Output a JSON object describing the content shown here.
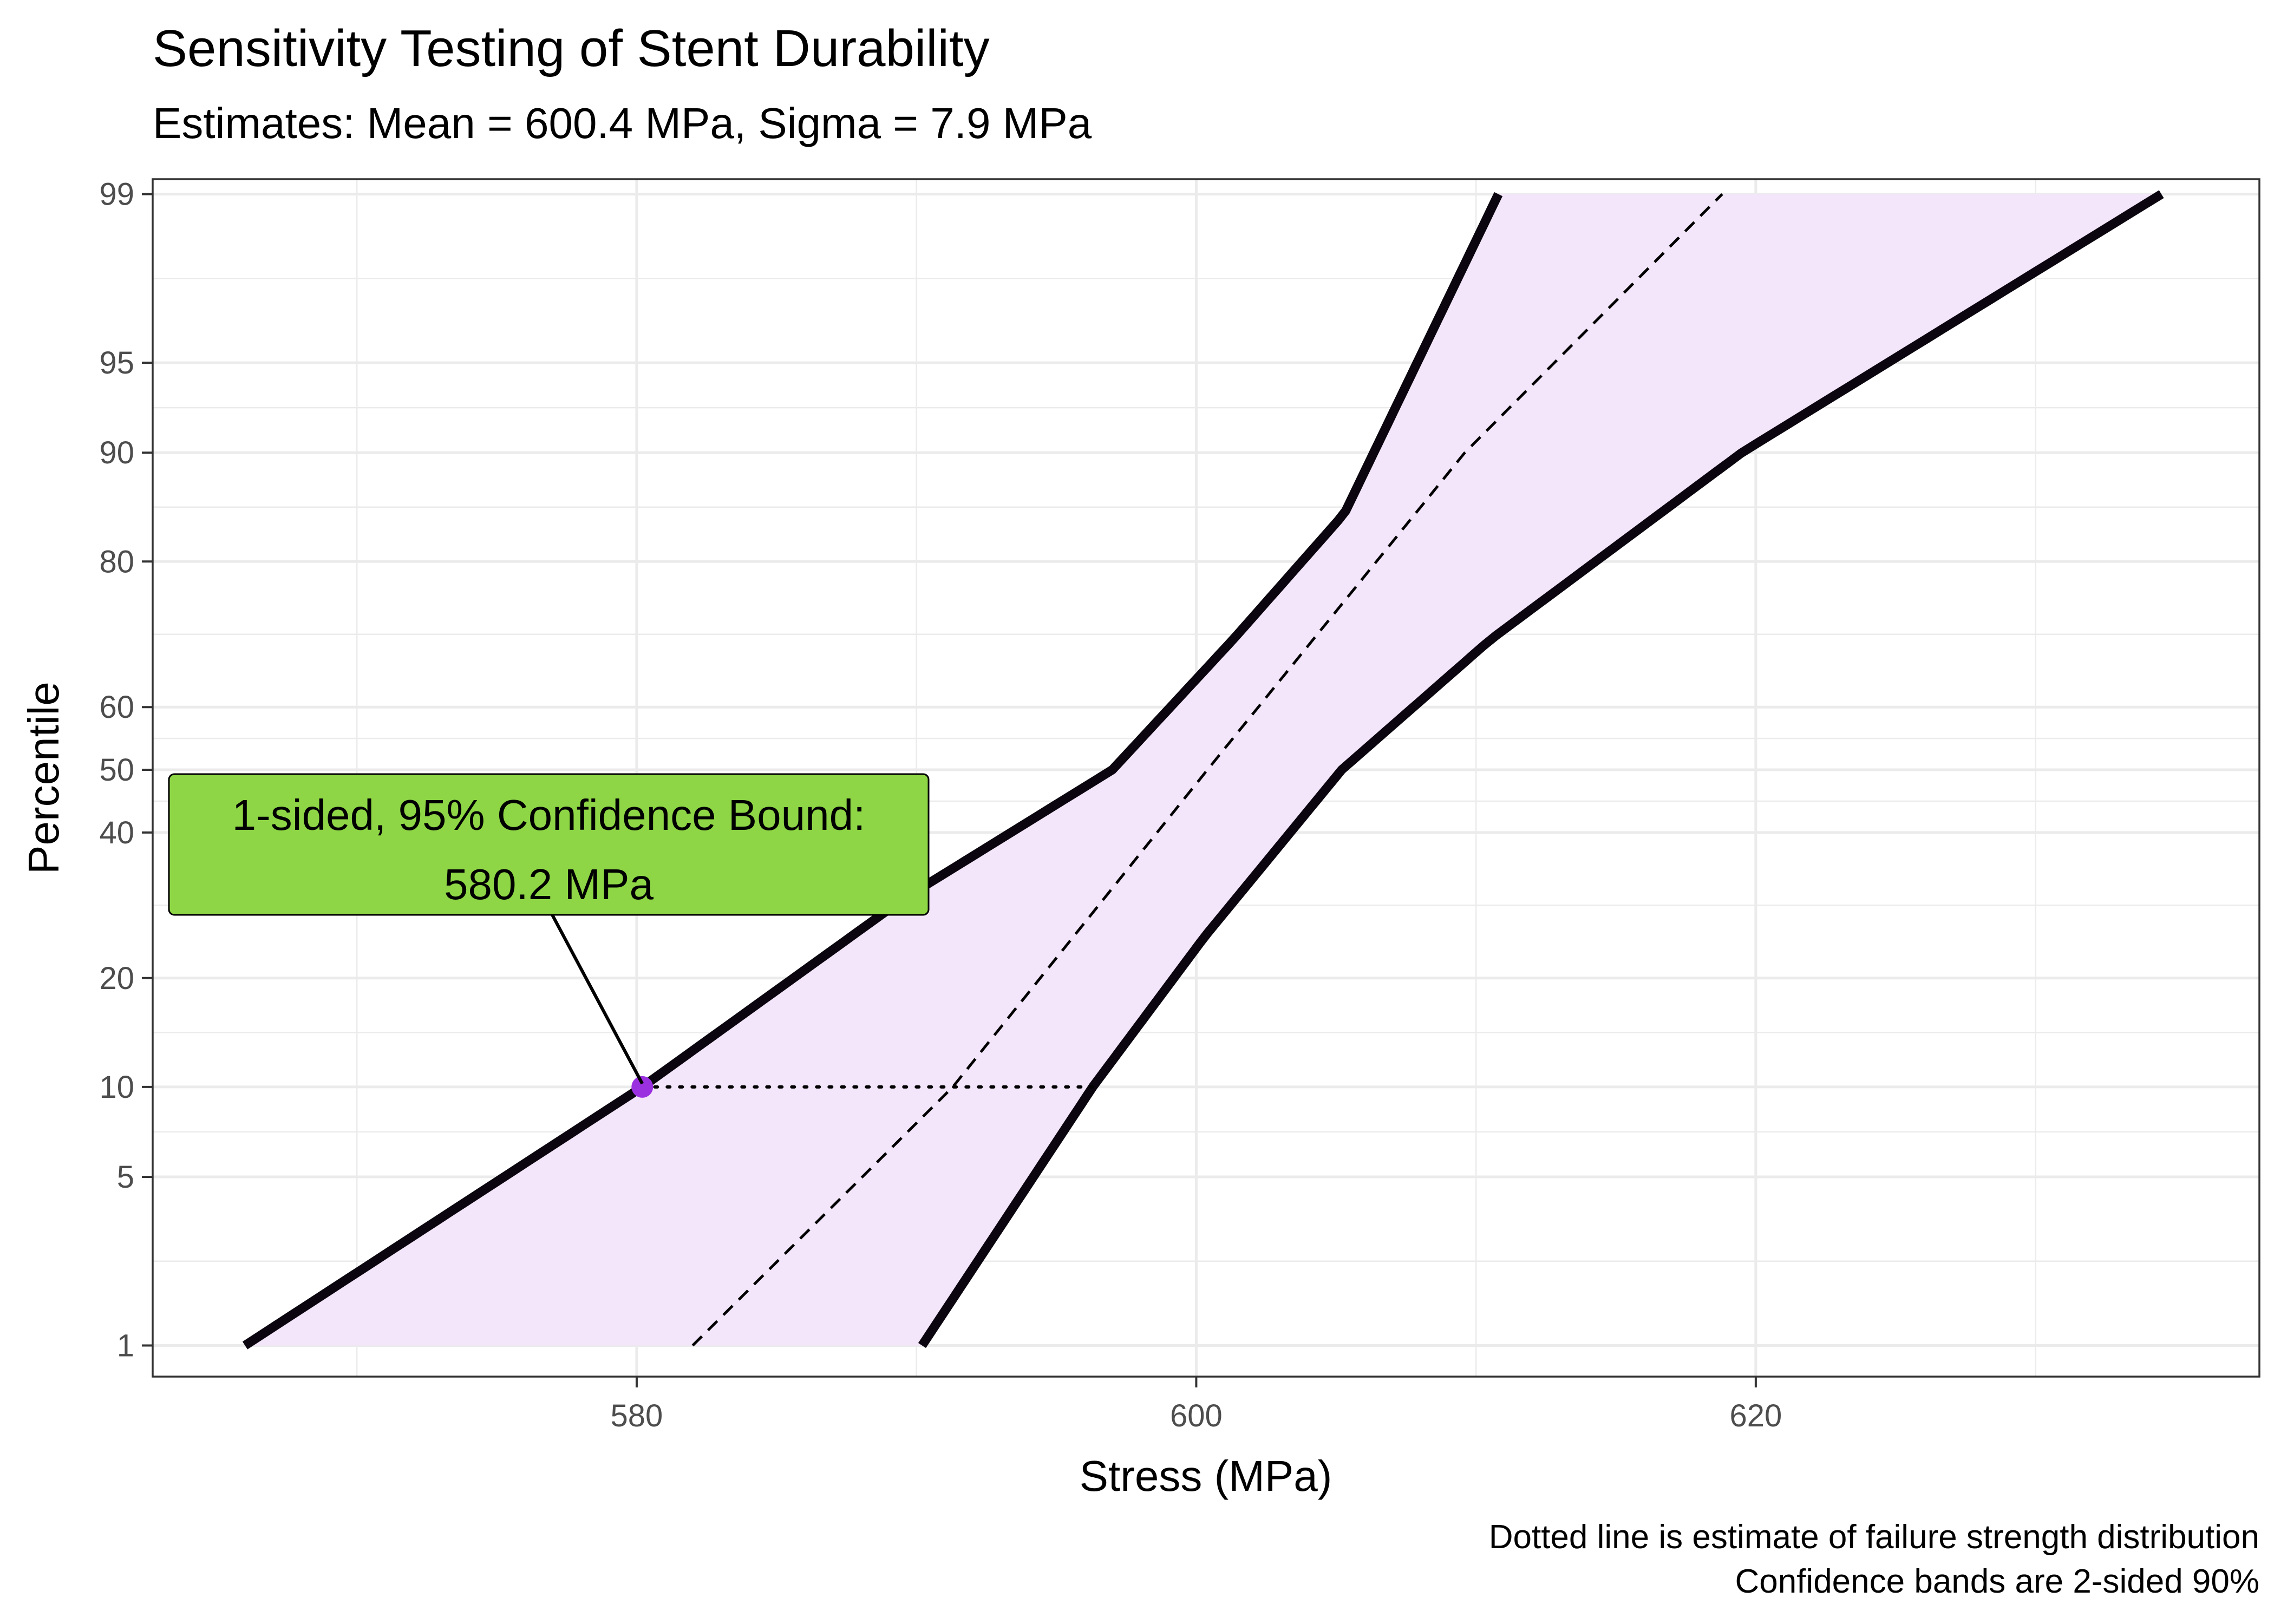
{
  "chart_data": {
    "type": "line",
    "title": "Sensitivity Testing of Stent Durability",
    "subtitle": "Estimates: Mean = 600.4 MPa, Sigma = 7.9 MPa",
    "xlabel": "Stress (MPa)",
    "ylabel": "Percentile",
    "xlim": [
      562.7,
      638.0
    ],
    "ylim": [
      0.71,
      99.15
    ],
    "y_scale": "normal-probability",
    "x_ticks": [
      580,
      600,
      620
    ],
    "y_ticks": [
      1,
      5,
      10,
      20,
      40,
      50,
      60,
      80,
      90,
      95,
      99
    ],
    "grid": true,
    "series": [
      {
        "style": "dashed",
        "points": [
          [
            582.0,
            1
          ],
          [
            591.3,
            10
          ],
          [
            600.4,
            50
          ],
          [
            609.6,
            90
          ],
          [
            618.8,
            99
          ]
        ]
      },
      {
        "style": "solid-thick",
        "points": [
          [
            566.0,
            1
          ],
          [
            580.2,
            10
          ],
          [
            589.5,
            30
          ],
          [
            597.0,
            50
          ],
          [
            601.3,
            70
          ],
          [
            605.3,
            85
          ],
          [
            610.8,
            99
          ]
        ]
      },
      {
        "style": "solid-thick",
        "points": [
          [
            590.2,
            1
          ],
          [
            596.3,
            10
          ],
          [
            600.3,
            25
          ],
          [
            605.2,
            50
          ],
          [
            610.5,
            70
          ],
          [
            619.5,
            90
          ],
          [
            634.5,
            99
          ]
        ]
      }
    ],
    "confidence_band": {
      "fill": "#f3e6fa"
    },
    "highlight_point": {
      "x": 580.2,
      "y": 10,
      "color": "#9b30e0",
      "dotted_to_x": 596.3
    },
    "annotation": {
      "lines": [
        "1-sided, 95% Confidence Bound:",
        "580.2 MPa"
      ],
      "fill": "#8ed646"
    },
    "caption": [
      "Dotted line is estimate of failure strength distribution",
      "Confidence bands are 2-sided 90%"
    ]
  }
}
